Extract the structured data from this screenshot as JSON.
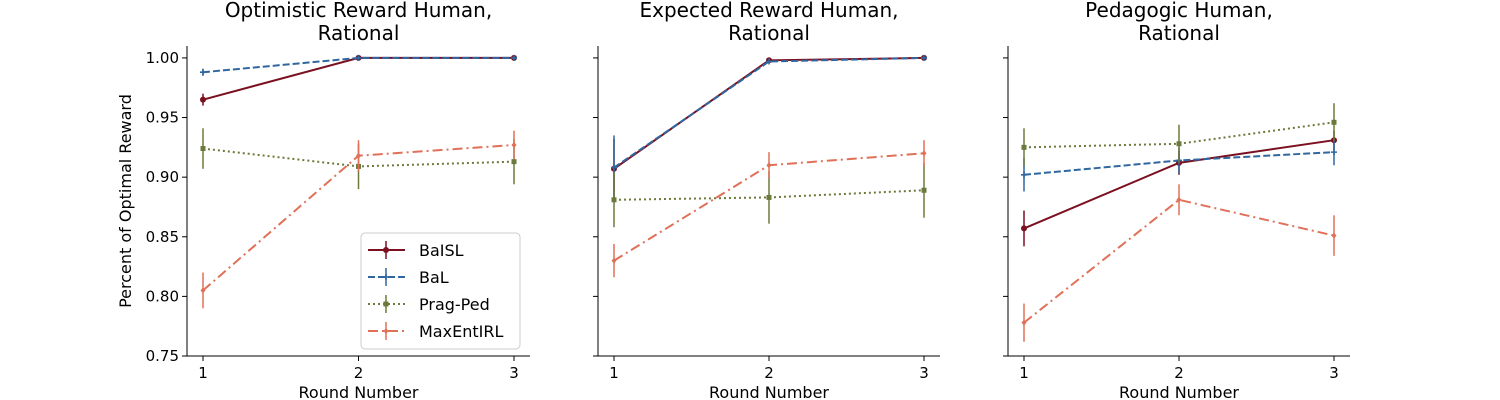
{
  "ylabel": "Percent of Optimal Reward",
  "series_styles": [
    {
      "name": "BaISL",
      "color": "#7b1020",
      "dash": "",
      "marker": "circle"
    },
    {
      "name": "BaL",
      "color": "#2f67a0",
      "dash": "7,3",
      "marker": "plus"
    },
    {
      "name": "Prag-Ped",
      "color": "#6b7a3c",
      "dash": "2,3",
      "marker": "square"
    },
    {
      "name": "MaxEntIRL",
      "color": "#e07058",
      "dash": "10,4,2,4",
      "marker": "diamond"
    }
  ],
  "chart_data": [
    {
      "type": "line",
      "title": "Optimistic Reward Human,\nRational",
      "xlabel": "Round Number",
      "ylabel": "Percent of Optimal Reward",
      "x": [
        1,
        2,
        3
      ],
      "ylim": [
        0.75,
        1.01
      ],
      "yticks": [
        0.75,
        0.8,
        0.85,
        0.9,
        0.95,
        1.0
      ],
      "legend": "lower-right",
      "series": [
        {
          "name": "BaISL",
          "values": [
            0.965,
            1.0,
            1.0
          ],
          "err": [
            0.005,
            0.001,
            0.001
          ]
        },
        {
          "name": "BaL",
          "values": [
            0.988,
            1.0,
            1.0
          ],
          "err": [
            0.003,
            0.001,
            0.001
          ]
        },
        {
          "name": "Prag-Ped",
          "values": [
            0.924,
            0.909,
            0.913
          ],
          "err": [
            0.017,
            0.019,
            0.019
          ]
        },
        {
          "name": "MaxEntIRL",
          "values": [
            0.805,
            0.918,
            0.927
          ],
          "err": [
            0.015,
            0.013,
            0.012
          ]
        }
      ]
    },
    {
      "type": "line",
      "title": "Expected Reward Human,\nRational",
      "xlabel": "Round Number",
      "x": [
        1,
        2,
        3
      ],
      "ylim": [
        0.75,
        1.01
      ],
      "yticks": [
        0.75,
        0.8,
        0.85,
        0.9,
        0.95,
        1.0
      ],
      "series": [
        {
          "name": "BaISL",
          "values": [
            0.907,
            0.998,
            1.0
          ],
          "err": [
            0.025,
            0.001,
            0.001
          ]
        },
        {
          "name": "BaL",
          "values": [
            0.908,
            0.997,
            1.0
          ],
          "err": [
            0.027,
            0.001,
            0.001
          ]
        },
        {
          "name": "Prag-Ped",
          "values": [
            0.881,
            0.883,
            0.889
          ],
          "err": [
            0.023,
            0.022,
            0.023
          ]
        },
        {
          "name": "MaxEntIRL",
          "values": [
            0.83,
            0.91,
            0.92
          ],
          "err": [
            0.014,
            0.011,
            0.011
          ]
        }
      ]
    },
    {
      "type": "line",
      "title": "Pedagogic Human,\nRational",
      "xlabel": "Round Number",
      "x": [
        1,
        2,
        3
      ],
      "ylim": [
        0.75,
        1.01
      ],
      "yticks": [
        0.75,
        0.8,
        0.85,
        0.9,
        0.95,
        1.0
      ],
      "series": [
        {
          "name": "BaISL",
          "values": [
            0.857,
            0.912,
            0.931
          ],
          "err": [
            0.015,
            0.01,
            0.008
          ]
        },
        {
          "name": "BaL",
          "values": [
            0.902,
            0.914,
            0.921
          ],
          "err": [
            0.014,
            0.011,
            0.011
          ]
        },
        {
          "name": "Prag-Ped",
          "values": [
            0.925,
            0.928,
            0.946
          ],
          "err": [
            0.016,
            0.016,
            0.016
          ]
        },
        {
          "name": "MaxEntIRL",
          "values": [
            0.778,
            0.881,
            0.851
          ],
          "err": [
            0.016,
            0.013,
            0.017
          ]
        }
      ]
    }
  ]
}
